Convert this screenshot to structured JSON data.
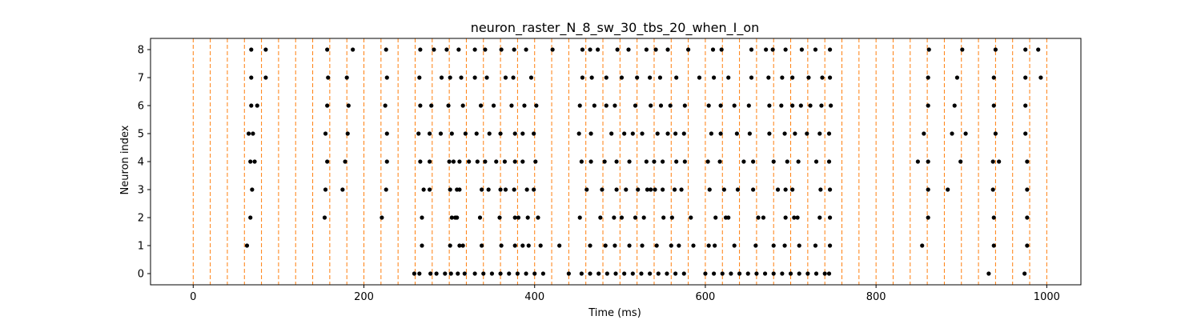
{
  "chart_data": {
    "type": "scatter",
    "title": "neuron_raster_N_8_sw_30_tbs_20_when_I_on",
    "xlabel": "Time (ms)",
    "ylabel": "Neuron index",
    "xlim": [
      -50,
      1040
    ],
    "ylim": [
      -0.4,
      8.4
    ],
    "xticks": [
      0,
      200,
      400,
      600,
      800,
      1000
    ],
    "yticks": [
      0,
      1,
      2,
      3,
      4,
      5,
      6,
      7,
      8
    ],
    "grid": false,
    "marker_color": "#000000",
    "stim_line_color": "#ff7f0e",
    "stimulus_times": [
      0,
      20,
      40,
      60,
      80,
      100,
      120,
      140,
      160,
      180,
      200,
      220,
      240,
      260,
      280,
      300,
      320,
      340,
      360,
      380,
      400,
      420,
      440,
      460,
      480,
      500,
      520,
      540,
      560,
      580,
      600,
      620,
      640,
      660,
      680,
      700,
      720,
      740,
      760,
      780,
      800,
      820,
      840,
      860,
      880,
      900,
      920,
      940,
      960,
      980,
      1000
    ],
    "spikes": [
      {
        "neuron": 0,
        "times": [
          259,
          265,
          278,
          285,
          295,
          302,
          310,
          318,
          330,
          340,
          350,
          360,
          370,
          380,
          390,
          400,
          410,
          440,
          455,
          465,
          475,
          485,
          495,
          505,
          515,
          525,
          535,
          545,
          555,
          565,
          575,
          600,
          610,
          620,
          630,
          640,
          650,
          660,
          670,
          680,
          690,
          700,
          710,
          720,
          730,
          740,
          745,
          932,
          974
        ]
      },
      {
        "neuron": 1,
        "times": [
          63,
          268,
          301,
          312,
          316,
          338,
          361,
          377,
          386,
          393,
          407,
          429,
          465,
          483,
          494,
          511,
          526,
          543,
          560,
          569,
          586,
          604,
          611,
          634,
          659,
          680,
          693,
          710,
          729,
          746,
          854,
          938,
          977
        ]
      },
      {
        "neuron": 2,
        "times": [
          67,
          154,
          221,
          268,
          303,
          307,
          309,
          336,
          359,
          377,
          381,
          392,
          404,
          453,
          477,
          493,
          502,
          518,
          528,
          551,
          561,
          583,
          612,
          624,
          627,
          662,
          668,
          694,
          704,
          708,
          734,
          746,
          861,
          938,
          977
        ]
      },
      {
        "neuron": 3,
        "times": [
          69,
          155,
          175,
          226,
          270,
          277,
          301,
          309,
          312,
          338,
          346,
          360,
          366,
          376,
          391,
          399,
          461,
          479,
          496,
          507,
          521,
          532,
          536,
          541,
          550,
          564,
          572,
          605,
          622,
          638,
          656,
          685,
          694,
          702,
          735,
          746,
          861,
          884,
          937,
          977
        ]
      },
      {
        "neuron": 4,
        "times": [
          67,
          72,
          157,
          178,
          227,
          266,
          277,
          300,
          305,
          312,
          323,
          333,
          342,
          355,
          365,
          377,
          386,
          401,
          455,
          466,
          482,
          496,
          511,
          531,
          540,
          550,
          566,
          576,
          603,
          617,
          645,
          656,
          680,
          696,
          709,
          730,
          745,
          849,
          861,
          899,
          937,
          944,
          977
        ]
      },
      {
        "neuron": 5,
        "times": [
          65,
          70,
          155,
          181,
          227,
          264,
          277,
          290,
          303,
          319,
          332,
          347,
          360,
          377,
          386,
          399,
          452,
          466,
          490,
          505,
          515,
          526,
          544,
          556,
          565,
          575,
          607,
          618,
          637,
          652,
          675,
          693,
          705,
          719,
          734,
          745,
          856,
          889,
          905,
          940,
          975
        ]
      },
      {
        "neuron": 6,
        "times": [
          68,
          75,
          157,
          182,
          225,
          266,
          279,
          299,
          316,
          337,
          352,
          373,
          388,
          402,
          453,
          470,
          484,
          494,
          518,
          536,
          548,
          559,
          576,
          604,
          618,
          634,
          651,
          675,
          689,
          702,
          712,
          723,
          736,
          747,
          861,
          892,
          938,
          975
        ]
      },
      {
        "neuron": 7,
        "times": [
          68,
          85,
          158,
          180,
          227,
          265,
          291,
          301,
          314,
          330,
          344,
          366,
          375,
          396,
          456,
          467,
          484,
          502,
          520,
          535,
          547,
          566,
          593,
          610,
          627,
          654,
          674,
          690,
          702,
          721,
          737,
          746,
          861,
          895,
          938,
          975,
          993
        ]
      },
      {
        "neuron": 8,
        "times": [
          68,
          85,
          157,
          187,
          226,
          266,
          282,
          297,
          311,
          330,
          342,
          361,
          376,
          390,
          421,
          456,
          465,
          474,
          497,
          510,
          531,
          542,
          556,
          580,
          609,
          619,
          654,
          671,
          679,
          694,
          713,
          729,
          746,
          862,
          901,
          940,
          975,
          990
        ]
      }
    ]
  }
}
